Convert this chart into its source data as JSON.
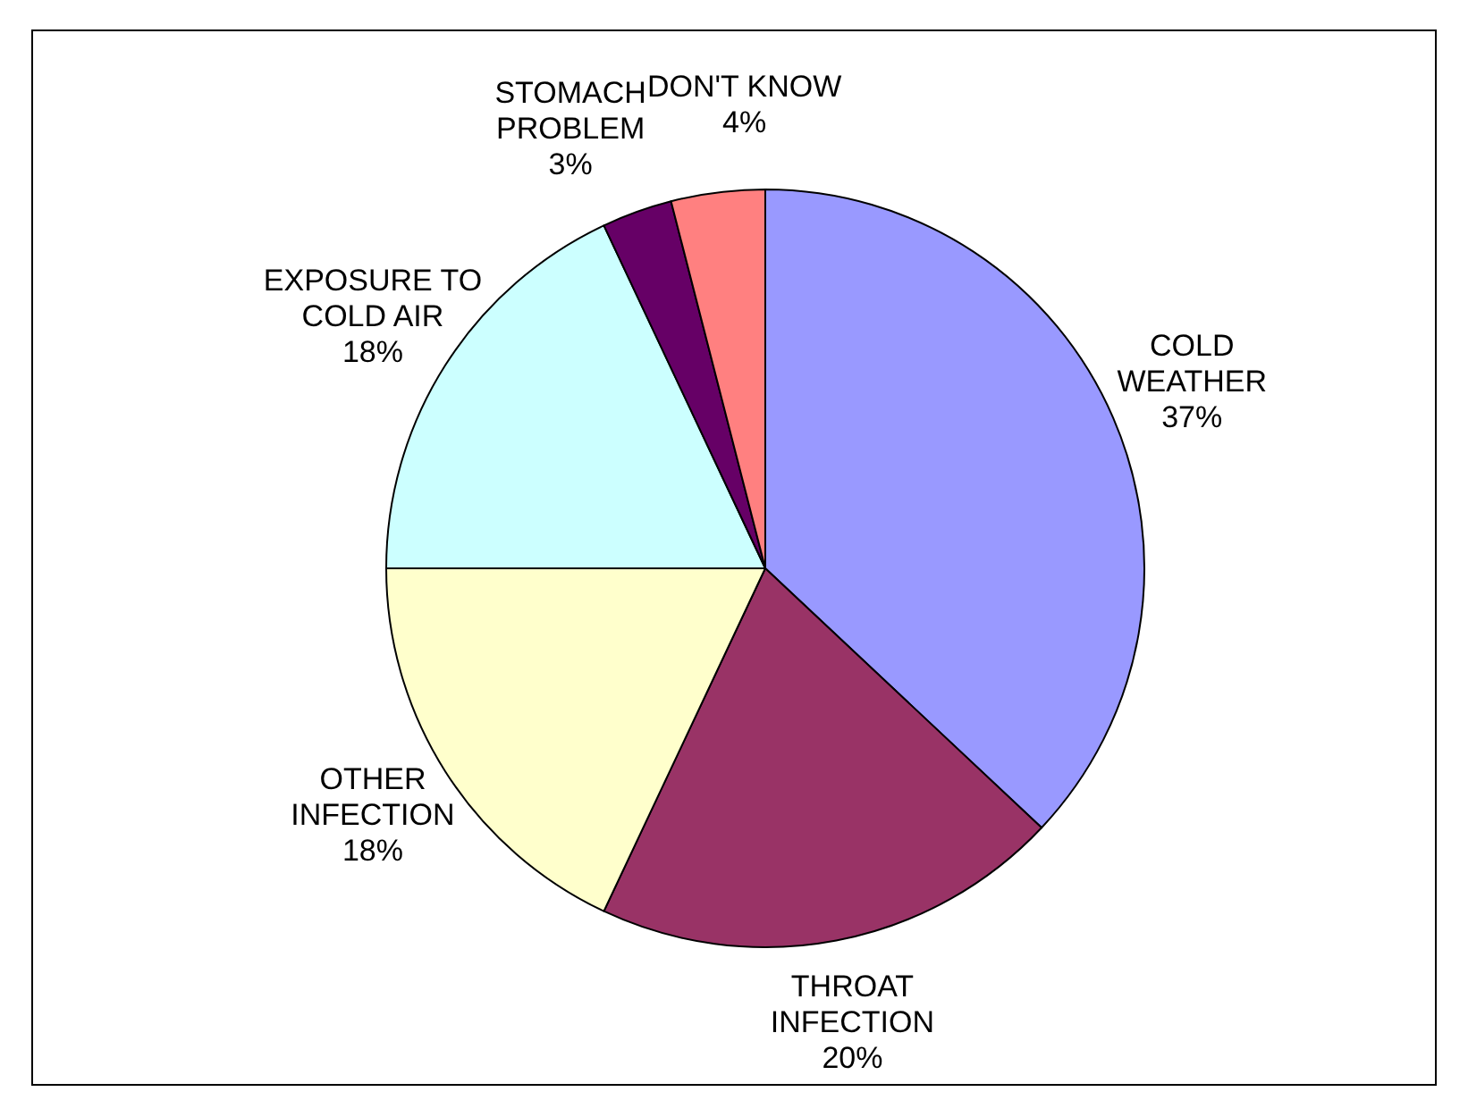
{
  "chart_data": {
    "type": "pie",
    "categories": [
      "COLD WEATHER",
      "THROAT INFECTION",
      "OTHER INFECTION",
      "EXPOSURE TO COLD AIR",
      "STOMACH PROBLEM",
      "DON'T KNOW"
    ],
    "values": [
      37,
      20,
      18,
      18,
      3,
      4
    ],
    "colors": [
      "#9999ff",
      "#993366",
      "#ffffcc",
      "#ccffff",
      "#660066",
      "#ff8080"
    ],
    "value_labels": [
      "37%",
      "20%",
      "18%",
      "18%",
      "3%",
      "4%"
    ]
  }
}
